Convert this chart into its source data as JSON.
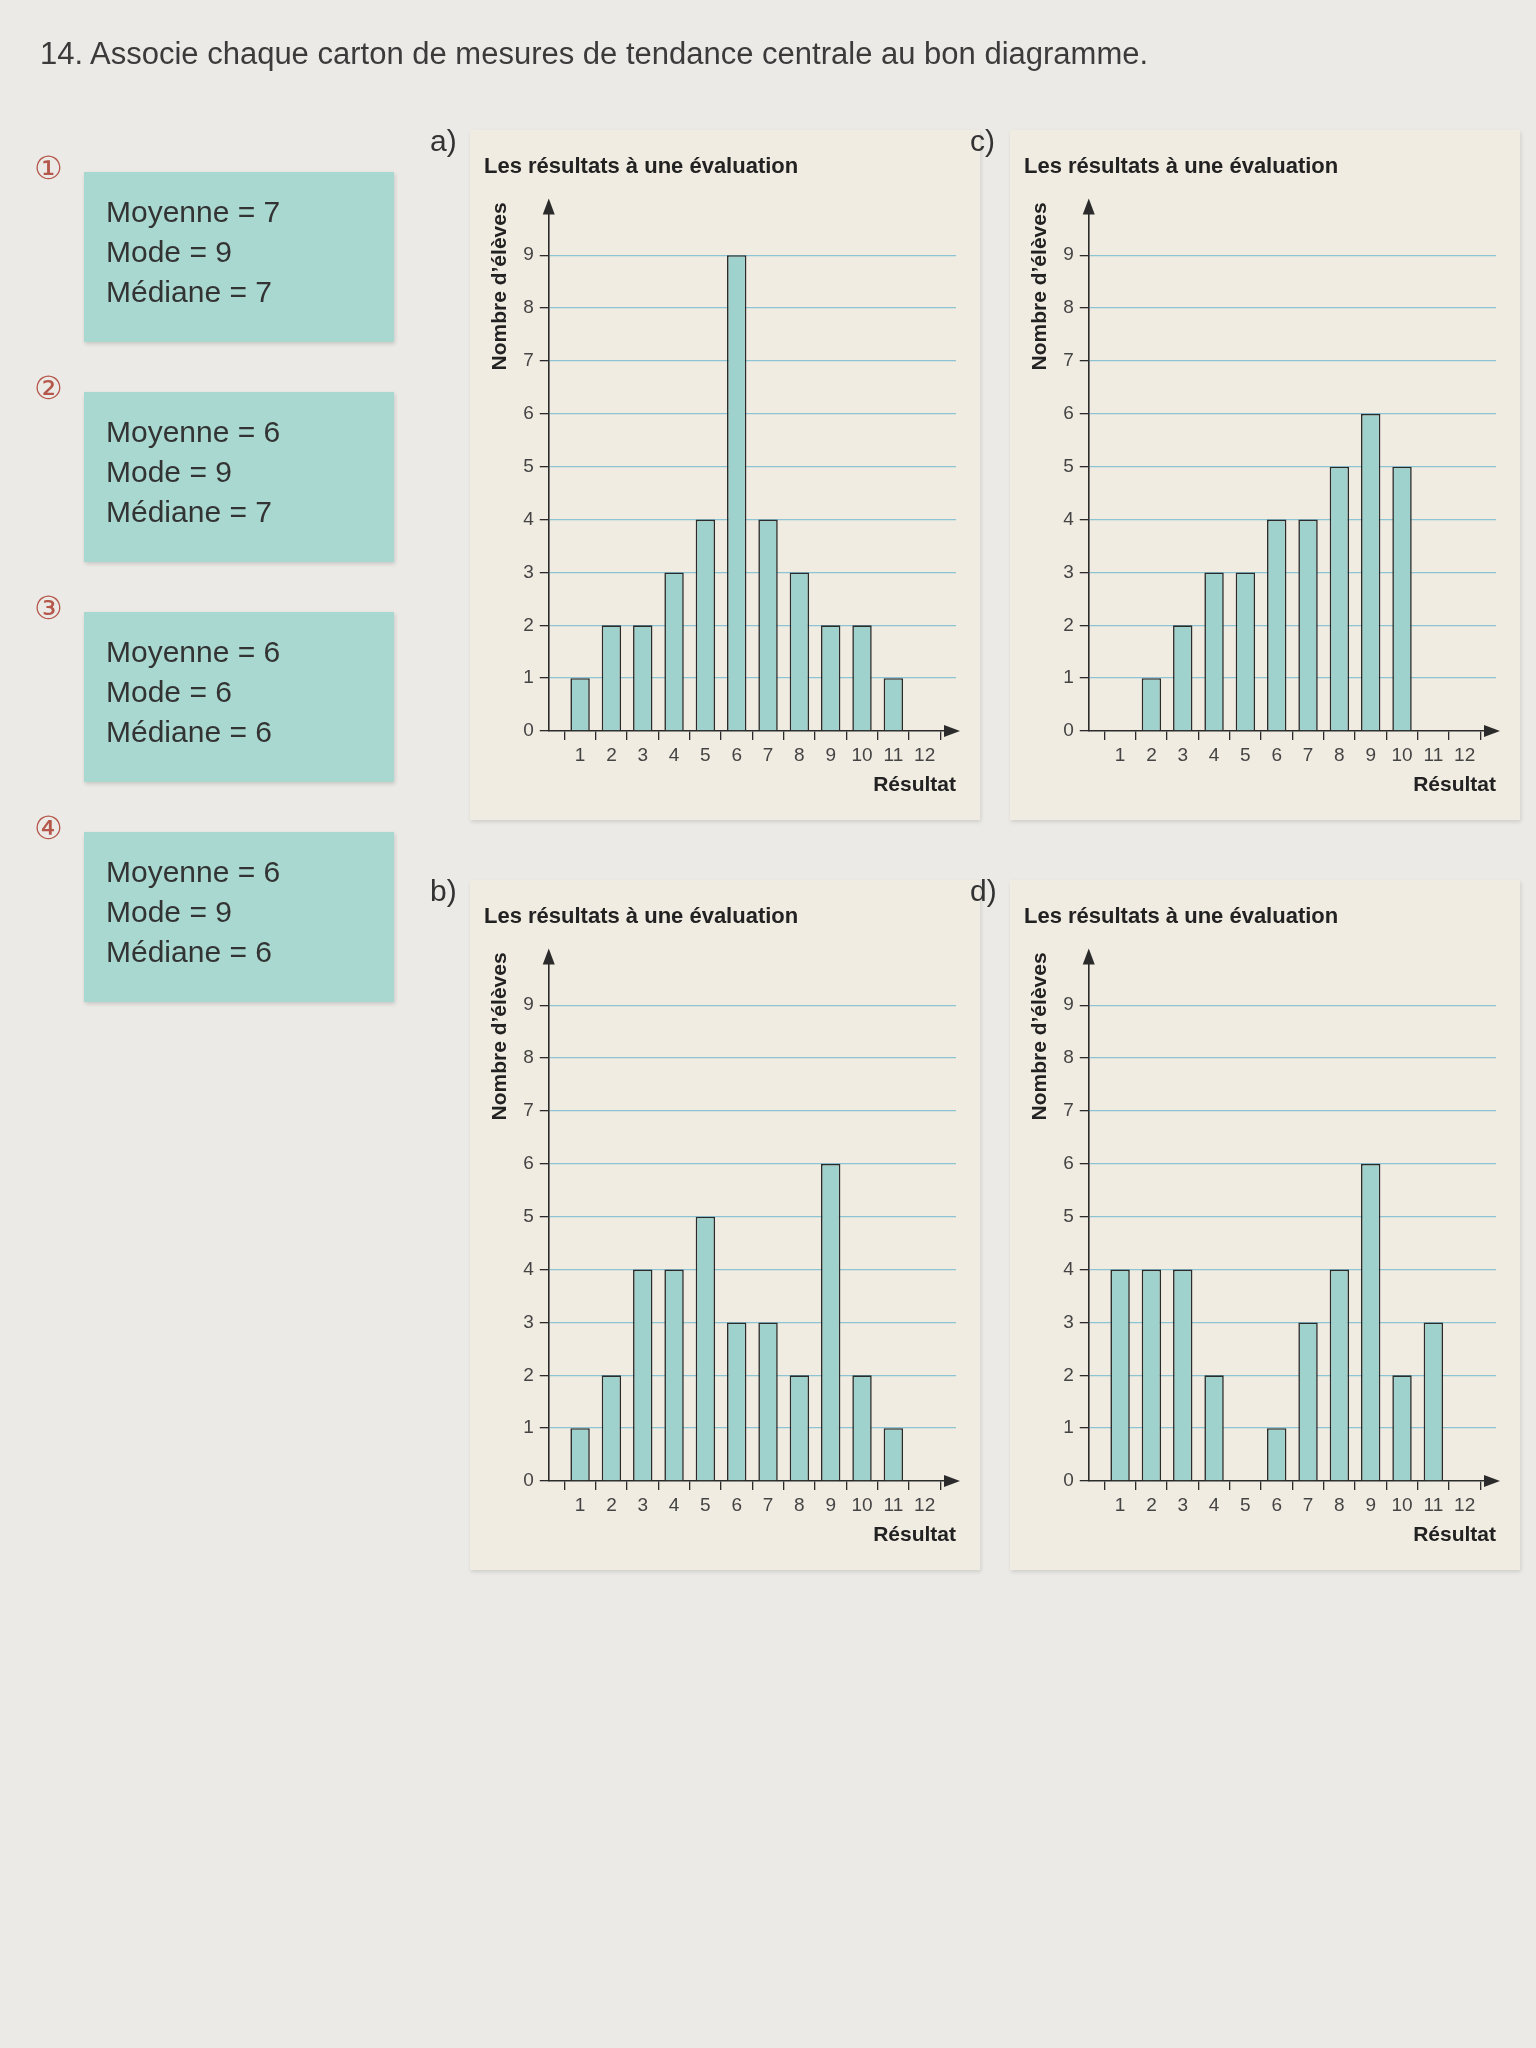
{
  "chart_data": [
    {
      "type": "other",
      "title": "14. Associe chaque carton de mesures de tendance centrale au bon diagramme.",
      "color": "#a8d8d0",
      "annotations": [
        "①",
        "Moyenne = 7\nMode = 9\nMédiane = 7",
        "②",
        "Moyenne = 6\nMode = 9\nMédiane = 7",
        "③",
        "Moyenne = 6\nMode = 6\nMédiane = 6",
        "④",
        "Moyenne = 6\nMode = 9\nMédiane = 6"
      ]
    },
    {
      "type": "bar",
      "title": "Les résultats à une évaluation",
      "xlabel": "Résultat",
      "ylabel": "Nombre d’élèves",
      "annotations": [
        "a)"
      ],
      "x": [
        1,
        2,
        3,
        4,
        5,
        6,
        7,
        8,
        9,
        10,
        11,
        12
      ],
      "values": [
        1,
        2,
        2,
        3,
        4,
        9,
        4,
        3,
        2,
        2,
        1,
        0
      ],
      "color": "#a0d2cd",
      "xlim": [
        0,
        13
      ],
      "xticks": [
        1,
        2,
        3,
        4,
        5,
        6,
        7,
        8,
        9,
        10,
        11,
        12
      ],
      "ylim": [
        0,
        10
      ],
      "yticks": [
        0,
        1,
        2,
        3,
        4,
        5,
        6,
        7,
        8,
        9
      ],
      "grid": "y"
    },
    {
      "type": "bar",
      "title": "Les résultats à une évaluation",
      "xlabel": "Résultat",
      "ylabel": "Nombre d’élèves",
      "annotations": [
        "b)"
      ],
      "x": [
        1,
        2,
        3,
        4,
        5,
        6,
        7,
        8,
        9,
        10,
        11,
        12
      ],
      "values": [
        1,
        2,
        4,
        4,
        5,
        3,
        3,
        2,
        6,
        2,
        1,
        0
      ],
      "color": "#a0d2cd",
      "xlim": [
        0,
        13
      ],
      "xticks": [
        1,
        2,
        3,
        4,
        5,
        6,
        7,
        8,
        9,
        10,
        11,
        12
      ],
      "ylim": [
        0,
        10
      ],
      "yticks": [
        0,
        1,
        2,
        3,
        4,
        5,
        6,
        7,
        8,
        9
      ],
      "grid": "y"
    },
    {
      "type": "bar",
      "title": "Les résultats à une évaluation",
      "xlabel": "Résultat",
      "ylabel": "Nombre d’élèves",
      "annotations": [
        "c)"
      ],
      "x": [
        1,
        2,
        3,
        4,
        5,
        6,
        7,
        8,
        9,
        10,
        11,
        12
      ],
      "values": [
        0,
        1,
        2,
        3,
        3,
        4,
        4,
        5,
        6,
        5,
        0,
        0
      ],
      "color": "#a0d2cd",
      "xlim": [
        0,
        13
      ],
      "xticks": [
        1,
        2,
        3,
        4,
        5,
        6,
        7,
        8,
        9,
        10,
        11,
        12
      ],
      "ylim": [
        0,
        10
      ],
      "yticks": [
        0,
        1,
        2,
        3,
        4,
        5,
        6,
        7,
        8,
        9
      ],
      "grid": "y"
    },
    {
      "type": "bar",
      "title": "Les résultats à une évaluation",
      "xlabel": "Résultat",
      "ylabel": "Nombre d’élèves",
      "annotations": [
        "d)"
      ],
      "x": [
        1,
        2,
        3,
        4,
        5,
        6,
        7,
        8,
        9,
        10,
        11,
        12
      ],
      "values": [
        4,
        4,
        4,
        2,
        0,
        1,
        3,
        4,
        6,
        2,
        3,
        0
      ],
      "color": "#a0d2cd",
      "xlim": [
        0,
        13
      ],
      "xticks": [
        1,
        2,
        3,
        4,
        5,
        6,
        7,
        8,
        9,
        10,
        11,
        12
      ],
      "ylim": [
        0,
        10
      ],
      "yticks": [
        0,
        1,
        2,
        3,
        4,
        5,
        6,
        7,
        8,
        9
      ],
      "grid": "y"
    }
  ]
}
